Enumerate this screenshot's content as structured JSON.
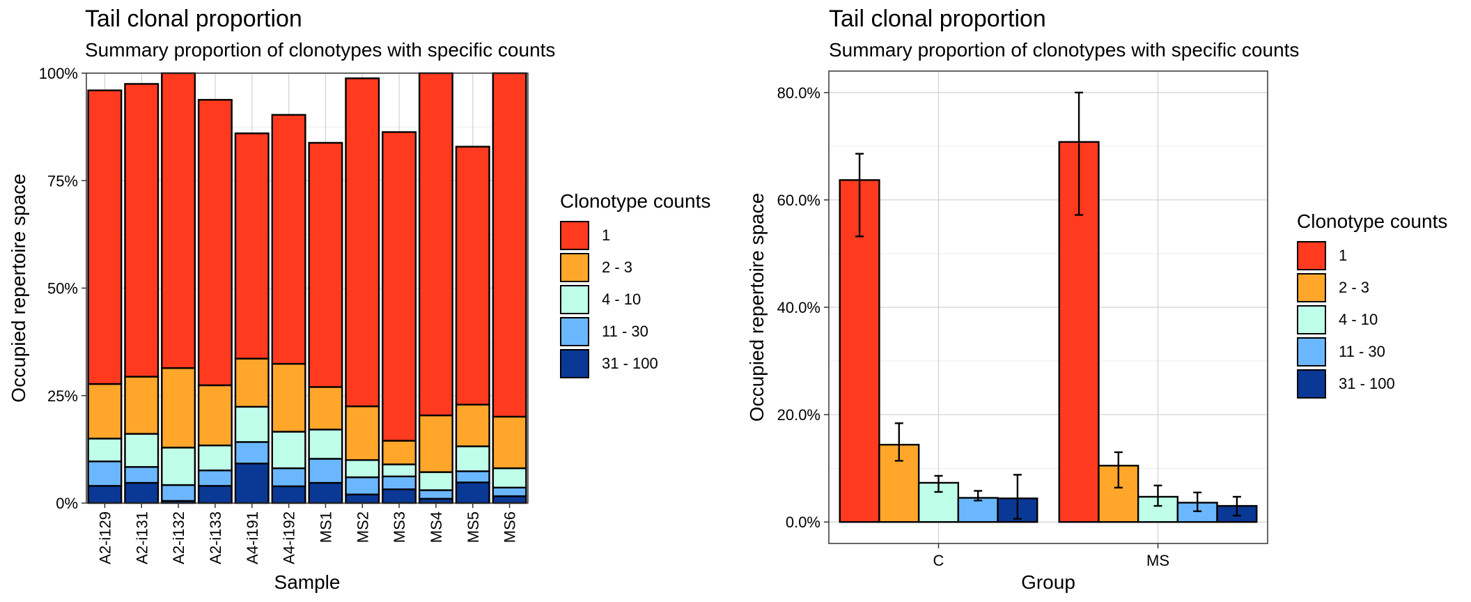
{
  "colors": {
    "c1": "#FF3A1F",
    "c2_3": "#FFA62B",
    "c4_10": "#BFFFEA",
    "c11_30": "#6BB7FF",
    "c31_100": "#0A3895"
  },
  "left": {
    "title": "Tail clonal proportion",
    "subtitle": "Summary proportion of clonotypes with specific counts",
    "xlabel": "Sample",
    "ylabel": "Occupied repertoire space",
    "legend_title": "Clonotype counts",
    "legend": [
      "1",
      "2 - 3",
      "4 - 10",
      "11 - 30",
      "31 - 100"
    ]
  },
  "right": {
    "title": "Tail clonal proportion",
    "subtitle": "Summary proportion of clonotypes with specific counts",
    "xlabel": "Group",
    "ylabel": "Occupied repertoire space",
    "legend_title": "Clonotype counts",
    "legend": [
      "1",
      "2 - 3",
      "4 - 10",
      "11 - 30",
      "31 - 100"
    ]
  },
  "chart_data": [
    {
      "type": "bar",
      "stacked": true,
      "title": "Tail clonal proportion",
      "subtitle": "Summary proportion of clonotypes with specific counts",
      "xlabel": "Sample",
      "ylabel": "Occupied repertoire space",
      "ylim": [
        0,
        1
      ],
      "y_ticks": [
        0,
        0.25,
        0.5,
        0.75,
        1.0
      ],
      "y_tick_labels": [
        "0%",
        "25%",
        "50%",
        "75%",
        "100%"
      ],
      "grid": true,
      "legend_position": "right",
      "categories": [
        "A2-i129",
        "A2-i131",
        "A2-i132",
        "A2-i133",
        "A4-i191",
        "A4-i192",
        "MS1",
        "MS2",
        "MS3",
        "MS4",
        "MS5",
        "MS6"
      ],
      "series": [
        {
          "name": "31 - 100",
          "values": [
            0.04,
            0.047,
            0.005,
            0.04,
            0.092,
            0.039,
            0.047,
            0.02,
            0.032,
            0.01,
            0.048,
            0.016
          ]
        },
        {
          "name": "11 - 30",
          "values": [
            0.057,
            0.037,
            0.037,
            0.036,
            0.05,
            0.042,
            0.056,
            0.04,
            0.03,
            0.02,
            0.026,
            0.02
          ]
        },
        {
          "name": "4 - 10",
          "values": [
            0.053,
            0.077,
            0.087,
            0.058,
            0.082,
            0.085,
            0.068,
            0.04,
            0.028,
            0.042,
            0.058,
            0.045
          ]
        },
        {
          "name": "2 - 3",
          "values": [
            0.127,
            0.133,
            0.185,
            0.14,
            0.112,
            0.158,
            0.099,
            0.125,
            0.055,
            0.132,
            0.097,
            0.12
          ]
        },
        {
          "name": "1",
          "values": [
            0.683,
            0.681,
            0.686,
            0.664,
            0.524,
            0.579,
            0.568,
            0.763,
            0.718,
            0.796,
            0.6,
            0.799
          ]
        }
      ]
    },
    {
      "type": "bar",
      "grouped": true,
      "title": "Tail clonal proportion",
      "subtitle": "Summary proportion of clonotypes with specific counts",
      "xlabel": "Group",
      "ylabel": "Occupied repertoire space",
      "ylim": [
        -0.04,
        0.84
      ],
      "y_ticks": [
        0,
        0.2,
        0.4,
        0.6,
        0.8
      ],
      "y_tick_labels": [
        "0.0%",
        "20.0%",
        "40.0%",
        "60.0%",
        "80.0%"
      ],
      "grid": true,
      "legend_position": "right",
      "categories": [
        "C",
        "MS"
      ],
      "series": [
        {
          "name": "1",
          "values": [
            0.637,
            0.708
          ],
          "err_low": [
            0.532,
            0.572
          ],
          "err_high": [
            0.686,
            0.8
          ]
        },
        {
          "name": "2 - 3",
          "values": [
            0.144,
            0.105
          ],
          "err_low": [
            0.114,
            0.064
          ],
          "err_high": [
            0.184,
            0.13
          ]
        },
        {
          "name": "4 - 10",
          "values": [
            0.073,
            0.047
          ],
          "err_low": [
            0.056,
            0.03
          ],
          "err_high": [
            0.086,
            0.068
          ]
        },
        {
          "name": "11 - 30",
          "values": [
            0.045,
            0.036
          ],
          "err_low": [
            0.04,
            0.02
          ],
          "err_high": [
            0.058,
            0.055
          ]
        },
        {
          "name": "31 - 100",
          "values": [
            0.044,
            0.03
          ],
          "err_low": [
            0.006,
            0.012
          ],
          "err_high": [
            0.088,
            0.047
          ]
        }
      ]
    }
  ]
}
